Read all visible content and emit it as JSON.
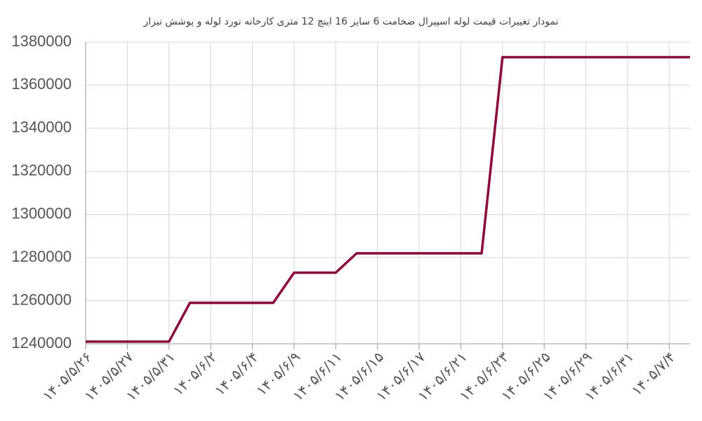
{
  "chart_data": {
    "type": "line",
    "title": "نمودار تغییرات قیمت لوله اسپیرال ضخامت 6 سایز 16 اینچ 12 متری کارخانه نورد لوله و پوشش نیزار",
    "categories": [
      "۱۴۰۵/۵/۲۶",
      null,
      "۱۴۰۵/۵/۲۷",
      null,
      "۱۴۰۵/۵/۳۱",
      null,
      "۱۴۰۵/۶/۲",
      null,
      "۱۴۰۵/۶/۴",
      null,
      "۱۴۰۵/۶/۹",
      null,
      "۱۴۰۵/۶/۱۱",
      null,
      "۱۴۰۵/۶/۱۵",
      null,
      "۱۴۰۵/۶/۱۷",
      null,
      "۱۴۰۵/۶/۲۱",
      null,
      "۱۴۰۵/۶/۲۳",
      null,
      "۱۴۰۵/۶/۲۵",
      null,
      "۱۴۰۵/۶/۲۹",
      null,
      "۱۴۰۵/۶/۳۱",
      null,
      "۱۴۰۵/۷/۴",
      null
    ],
    "values": [
      1241000,
      1241000,
      1241000,
      1241000,
      1241000,
      1259000,
      1259000,
      1259000,
      1259000,
      1259000,
      1273000,
      1273000,
      1273000,
      1282000,
      1282000,
      1282000,
      1282000,
      1282000,
      1282000,
      1282000,
      1373000,
      1373000,
      1373000,
      1373000,
      1373000,
      1373000,
      1373000,
      1373000,
      1373000,
      1373000
    ],
    "color": "#8b0a3c",
    "ylim": [
      1240000,
      1380000
    ],
    "yticks": [
      1240000,
      1260000,
      1280000,
      1300000,
      1320000,
      1340000,
      1360000,
      1380000
    ],
    "grid": true
  }
}
